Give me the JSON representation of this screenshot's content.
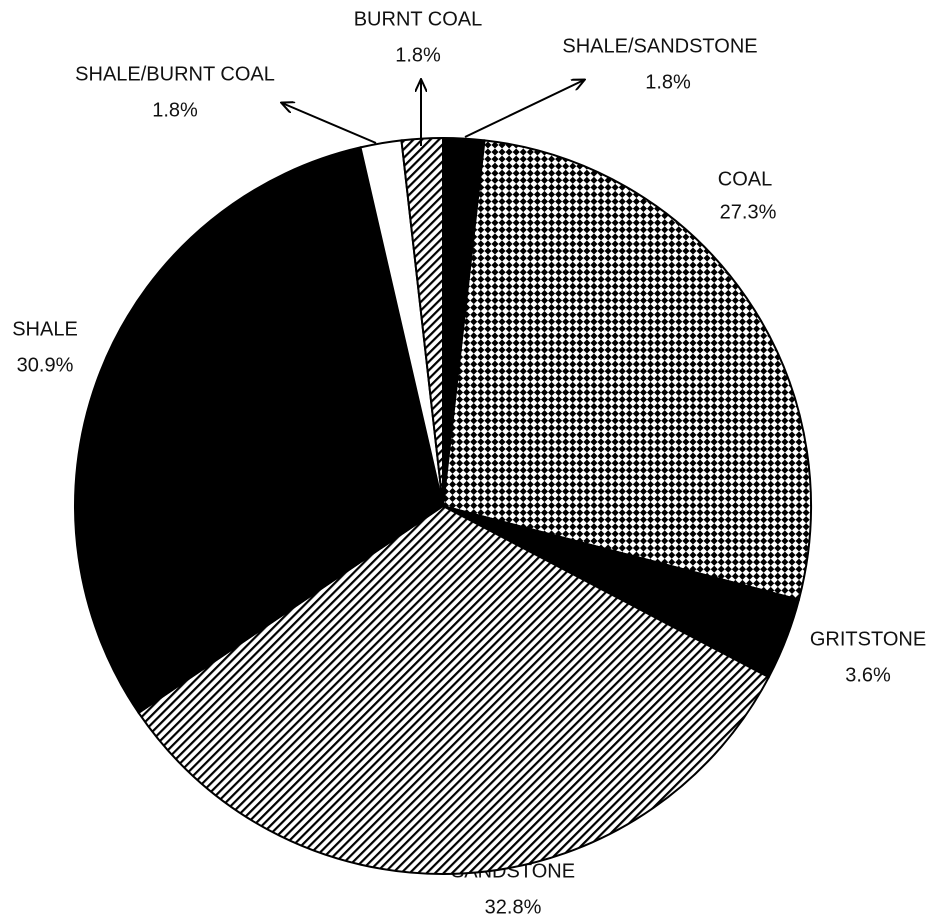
{
  "chart_data": {
    "type": "pie",
    "categories": [
      "SHALE/SANDSTONE",
      "COAL",
      "GRITSTONE",
      "SANDSTONE",
      "SHALE",
      "SHALE/BURNT COAL",
      "BURNT COAL"
    ],
    "values": [
      1.8,
      27.3,
      3.6,
      32.8,
      30.9,
      1.8,
      1.8
    ],
    "value_labels": [
      "1.8%",
      "27.3%",
      "3.6%",
      "32.8%",
      "30.9%",
      "1.8%",
      "1.8%"
    ],
    "fills": [
      "solid",
      "checker",
      "solid",
      "hatch",
      "solid",
      "white",
      "hatch"
    ]
  }
}
